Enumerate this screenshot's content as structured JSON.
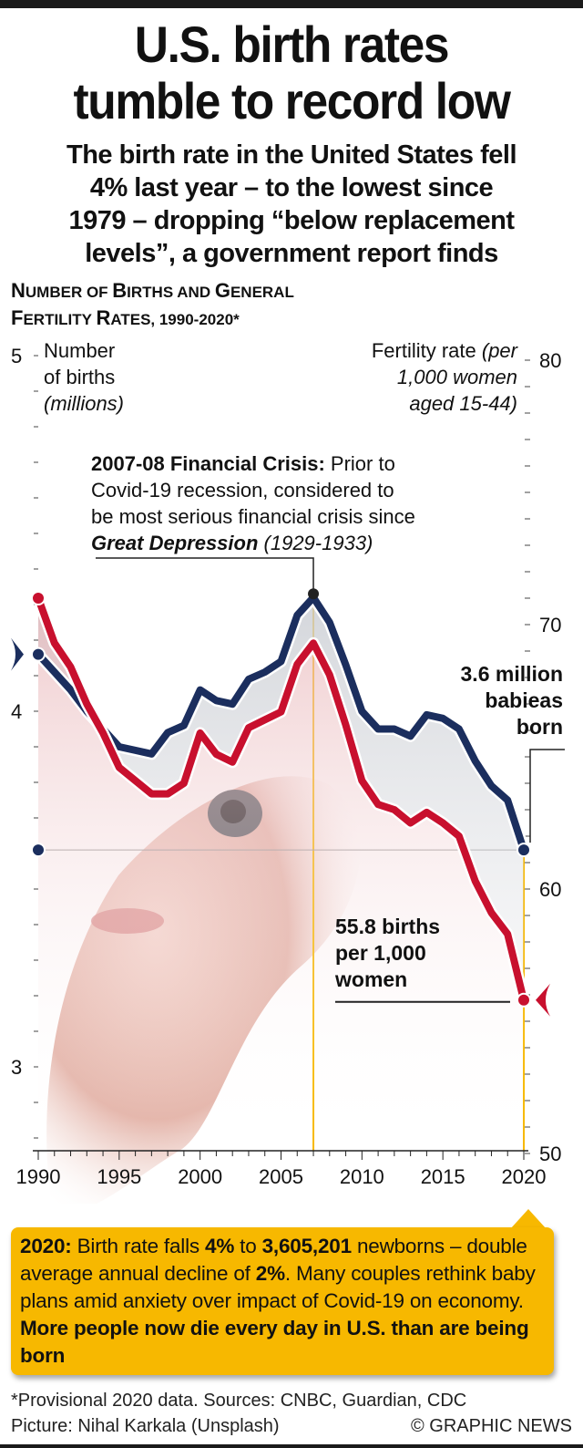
{
  "header": {
    "title_line1": "U.S. birth rates",
    "title_line2": "tumble to record low",
    "subtitle_lines": [
      "The birth rate in the United States fell",
      "4% last year – to the lowest since",
      "1979 – dropping “below replacement",
      "levels”, a government report finds"
    ]
  },
  "chart_heading": {
    "line1": [
      "N",
      "UMBER OF ",
      "B",
      "IRTHS AND ",
      "G",
      "ENERAL"
    ],
    "line2": [
      "F",
      "ERTILITY ",
      "R",
      "ATES, 1990-2020*"
    ]
  },
  "axis_labels": {
    "left_line1": "Number",
    "left_line2": "of births",
    "left_line3": "(millions)",
    "right_line1_plain": "Fertility rate ",
    "right_line1_italic": "(per",
    "right_line2": "1,000 women",
    "right_line3": "aged 15-44)"
  },
  "annotations": {
    "crisis_bold": "2007-08 Financial Crisis:",
    "crisis_text1": " Prior to",
    "crisis_text2": "Covid-19 recession, considered to",
    "crisis_text3": "be most serious financial crisis since",
    "crisis_bold_italic": "Great Depression",
    "crisis_italic": " (1929-1933)",
    "births_line1": "3.6 million",
    "births_line2": "babieas",
    "births_line3": "born",
    "rate_line1": "55.8 births",
    "rate_line2": "per 1,000",
    "rate_line3": "women"
  },
  "callout": {
    "b1": "2020:",
    "t1": " Birth rate falls ",
    "b2": "4%",
    "t2": " to ",
    "b3": "3,605,201",
    "t3": " newborns – double average annual decline of ",
    "b4": "2%",
    "t4": ". Many couples rethink baby plans amid anxiety over impact of Covid-19 on economy. ",
    "b5": "More people now die every day in U.S. than are being born"
  },
  "footer": {
    "sources": "*Provisional 2020 data. Sources: CNBC, Guardian, CDC",
    "picture": "Picture: Nihal Karkala (Unsplash)",
    "credit": "© GRAPHIC NEWS"
  },
  "colors": {
    "births_line": "#1b2e5e",
    "fertility_line": "#c8102e",
    "highlight": "#f7b800"
  },
  "chart_data": {
    "type": "line",
    "title": "Number of births and general fertility rates, 1990-2020*",
    "x": [
      1990,
      1991,
      1992,
      1993,
      1994,
      1995,
      1996,
      1997,
      1998,
      1999,
      2000,
      2001,
      2002,
      2003,
      2004,
      2005,
      2006,
      2007,
      2008,
      2009,
      2010,
      2011,
      2012,
      2013,
      2014,
      2015,
      2016,
      2017,
      2018,
      2019,
      2020
    ],
    "xlabel": "",
    "x_ticks": [
      "1990",
      "1995",
      "2000",
      "2005",
      "2010",
      "2015",
      "2020"
    ],
    "x_range": [
      1990,
      2020
    ],
    "series": [
      {
        "name": "Number of births (millions)",
        "axis": "left",
        "values": [
          4.16,
          4.11,
          4.06,
          4.0,
          3.95,
          3.9,
          3.89,
          3.88,
          3.94,
          3.96,
          4.06,
          4.03,
          4.02,
          4.09,
          4.11,
          4.14,
          4.27,
          4.32,
          4.25,
          4.13,
          4.0,
          3.95,
          3.95,
          3.93,
          3.99,
          3.98,
          3.95,
          3.86,
          3.79,
          3.75,
          3.61
        ]
      },
      {
        "name": "Fertility rate (per 1,000 women aged 15-44)",
        "axis": "right",
        "values": [
          71.0,
          69.3,
          68.4,
          67.0,
          65.9,
          64.6,
          64.1,
          63.6,
          63.6,
          64.0,
          65.9,
          65.1,
          64.8,
          66.1,
          66.4,
          66.7,
          68.5,
          69.3,
          68.1,
          66.2,
          64.1,
          63.2,
          63.0,
          62.5,
          62.9,
          62.5,
          62.0,
          60.3,
          59.1,
          58.3,
          55.8
        ]
      }
    ],
    "left_axis": {
      "label": "Number of births (millions)",
      "range": [
        2.75,
        5
      ],
      "ticks": [
        "3",
        "4",
        "5"
      ]
    },
    "right_axis": {
      "label": "Fertility rate (per 1,000 women aged 15-44)",
      "range": [
        50,
        80
      ],
      "ticks": [
        "50",
        "60",
        "70",
        "80"
      ]
    },
    "highlights": [
      {
        "year": 2007,
        "label": "2007-08 Financial Crisis"
      },
      {
        "year": 2020,
        "label": "2020"
      }
    ],
    "grid": false,
    "legend": "none"
  }
}
